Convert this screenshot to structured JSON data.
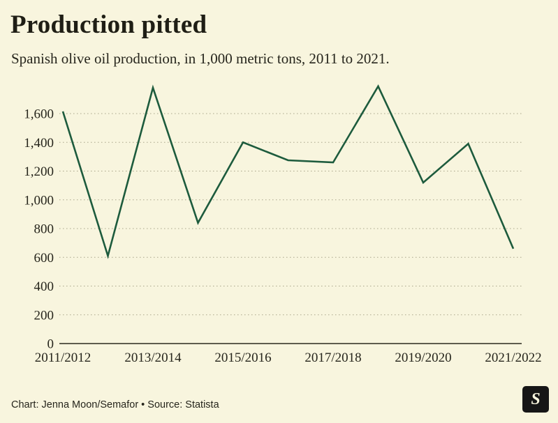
{
  "header": {
    "title": "Production pitted",
    "subtitle": "Spanish olive oil production, in 1,000 metric tons, 2011 to 2021."
  },
  "chart_data": {
    "type": "line",
    "title": "Production pitted",
    "subtitle": "Spanish olive oil production, in 1,000 metric tons, 2011 to 2021.",
    "x": [
      "2011/2012",
      "2012/2013",
      "2013/2014",
      "2014/2015",
      "2015/2016",
      "2016/2017",
      "2017/2018",
      "2018/2019",
      "2019/2020",
      "2020/2021",
      "2021/2022"
    ],
    "values": [
      1615,
      610,
      1780,
      840,
      1400,
      1275,
      1260,
      1790,
      1120,
      1390,
      660
    ],
    "x_tick_labels": [
      "2011/2012",
      "2013/2014",
      "2015/2016",
      "2017/2018",
      "2019/2020",
      "2021/2022"
    ],
    "y_ticks": [
      0,
      200,
      400,
      600,
      800,
      1000,
      1200,
      1400,
      1600
    ],
    "ylim": [
      0,
      1860
    ],
    "grid": "dotted-horizontal",
    "legend": "none",
    "line_color": "#1d5b3d",
    "grid_color": "#a9a58a",
    "axis_color": "#2a291f",
    "background": "#f8f5de"
  },
  "footer": {
    "credit": "Chart: Jenna Moon/Semafor • Source: Statista",
    "logo_letter": "S"
  }
}
